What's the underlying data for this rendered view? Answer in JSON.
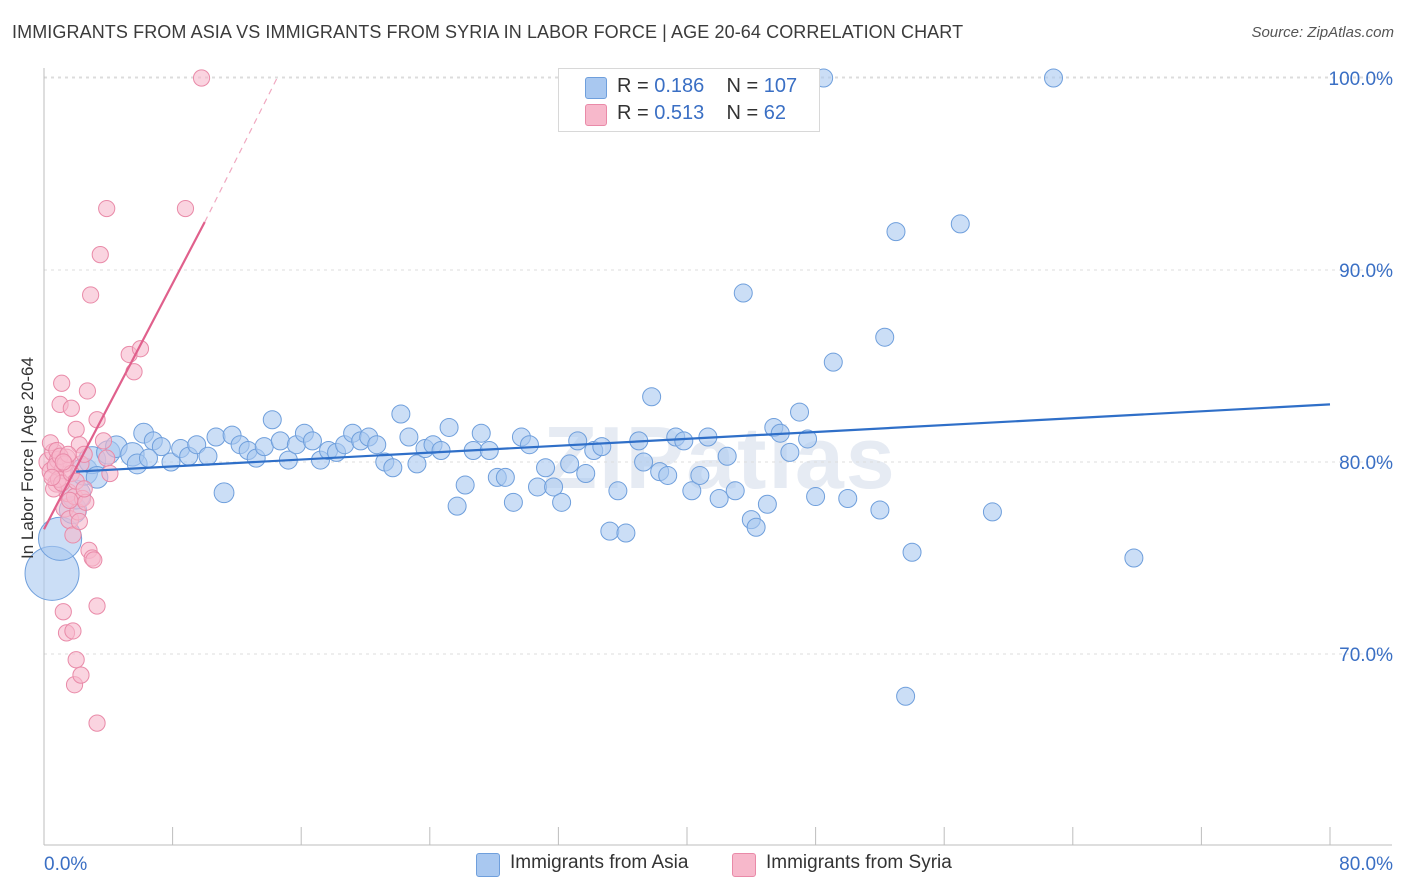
{
  "title": "IMMIGRANTS FROM ASIA VS IMMIGRANTS FROM SYRIA IN LABOR FORCE | AGE 20-64 CORRELATION CHART",
  "source": "Source: ZipAtlas.com",
  "watermark": "ZIPatlas",
  "legend": {
    "asia": {
      "r_label": "R =",
      "r_value": "0.186",
      "n_label": "N =",
      "n_value": "107"
    },
    "syria": {
      "r_label": "R =",
      "r_value": "0.513",
      "n_label": "N =",
      "n_value": "62"
    }
  },
  "colors": {
    "asia_fill": "#a9c8f0",
    "asia_stroke": "#6f9fdc",
    "asia_line": "#2f6fc8",
    "syria_fill": "#f7b8cb",
    "syria_stroke": "#e98aa8",
    "syria_line": "#e0608c",
    "axis_text": "#3a6fc4"
  },
  "chart_data": {
    "type": "scatter",
    "xlabel": "",
    "ylabel": "In Labor Force | Age 20-64",
    "xlim": [
      0,
      80
    ],
    "ylim": [
      60,
      100
    ],
    "x_ticks": [
      "0.0%",
      "80.0%"
    ],
    "y_ticks": [
      {
        "value": 70,
        "label": "70.0%"
      },
      {
        "value": 80,
        "label": "80.0%"
      },
      {
        "value": 90,
        "label": "90.0%"
      },
      {
        "value": 100,
        "label": "100.0%"
      }
    ],
    "grid": "horizontal dashed",
    "legend_position": "top-center",
    "series": [
      {
        "name": "Immigrants from Asia",
        "trend": {
          "x0": 2.0,
          "y0": 79.5,
          "x1": 80.0,
          "y1": 83.0
        },
        "points": [
          [
            0.5,
            74.2,
            3
          ],
          [
            1.0,
            76.0,
            2.4
          ],
          [
            1.8,
            77.5,
            1.5
          ],
          [
            2.0,
            78.3,
            1.6
          ],
          [
            2.5,
            79.5,
            1.5
          ],
          [
            3.0,
            80.1,
            1.5
          ],
          [
            4.0,
            80.5,
            1.3
          ],
          [
            4.5,
            80.8,
            1.2
          ],
          [
            5.5,
            80.4,
            1.3
          ],
          [
            5.8,
            79.9,
            1.1
          ],
          [
            6.2,
            81.5,
            1.1
          ],
          [
            6.8,
            81.1,
            1.0
          ],
          [
            7.3,
            80.8,
            1.0
          ],
          [
            7.9,
            80.0,
            1.0
          ],
          [
            8.5,
            80.7,
            1.0
          ],
          [
            9.0,
            80.3,
            1.0
          ],
          [
            9.5,
            80.9,
            1.0
          ],
          [
            10.2,
            80.3,
            1.0
          ],
          [
            10.7,
            81.3,
            1.0
          ],
          [
            11.2,
            78.4,
            1.1
          ],
          [
            11.7,
            81.4,
            1.0
          ],
          [
            12.2,
            80.9,
            1.0
          ],
          [
            12.7,
            80.6,
            1.0
          ],
          [
            13.2,
            80.2,
            1.0
          ],
          [
            13.7,
            80.8,
            1.0
          ],
          [
            14.2,
            82.2,
            1.0
          ],
          [
            14.7,
            81.1,
            1.0
          ],
          [
            15.2,
            80.1,
            1.0
          ],
          [
            15.7,
            80.9,
            1.0
          ],
          [
            16.2,
            81.5,
            1.0
          ],
          [
            16.7,
            81.1,
            1.0
          ],
          [
            17.2,
            80.1,
            1.0
          ],
          [
            17.7,
            80.6,
            1.0
          ],
          [
            18.2,
            80.5,
            1.0
          ],
          [
            18.7,
            80.9,
            1.0
          ],
          [
            19.2,
            81.5,
            1.0
          ],
          [
            19.7,
            81.1,
            1.0
          ],
          [
            20.2,
            81.3,
            1.0
          ],
          [
            20.7,
            80.9,
            1.0
          ],
          [
            21.2,
            80.0,
            1.0
          ],
          [
            21.7,
            79.7,
            1.0
          ],
          [
            22.2,
            82.5,
            1.0
          ],
          [
            22.7,
            81.3,
            1.0
          ],
          [
            23.2,
            79.9,
            1.0
          ],
          [
            23.7,
            80.7,
            1.0
          ],
          [
            24.2,
            80.9,
            1.0
          ],
          [
            24.7,
            80.6,
            1.0
          ],
          [
            25.2,
            81.8,
            1.0
          ],
          [
            25.7,
            77.7,
            1.0
          ],
          [
            26.2,
            78.8,
            1.0
          ],
          [
            26.7,
            80.6,
            1.0
          ],
          [
            27.2,
            81.5,
            1.0
          ],
          [
            27.7,
            80.6,
            1.0
          ],
          [
            28.2,
            79.2,
            1.0
          ],
          [
            28.7,
            79.2,
            1.0
          ],
          [
            29.2,
            77.9,
            1.0
          ],
          [
            29.7,
            81.3,
            1.0
          ],
          [
            30.2,
            80.9,
            1.0
          ],
          [
            30.7,
            78.7,
            1.0
          ],
          [
            31.2,
            79.7,
            1.0
          ],
          [
            31.7,
            78.7,
            1.0
          ],
          [
            32.2,
            77.9,
            1.0
          ],
          [
            32.7,
            79.9,
            1.0
          ],
          [
            33.2,
            81.1,
            1.0
          ],
          [
            33.7,
            79.4,
            1.0
          ],
          [
            34.2,
            80.6,
            1.0
          ],
          [
            34.7,
            80.8,
            1.0
          ],
          [
            35.2,
            76.4,
            1.0
          ],
          [
            35.7,
            78.5,
            1.0
          ],
          [
            36.2,
            76.3,
            1.0
          ],
          [
            37.0,
            81.1,
            1.0
          ],
          [
            37.3,
            80.0,
            1.0
          ],
          [
            37.8,
            83.4,
            1.0
          ],
          [
            38.3,
            79.5,
            1.0
          ],
          [
            38.8,
            79.3,
            1.0
          ],
          [
            39.3,
            81.3,
            1.0
          ],
          [
            39.8,
            81.1,
            1.0
          ],
          [
            40.3,
            78.5,
            1.0
          ],
          [
            40.8,
            79.3,
            1.0
          ],
          [
            41.3,
            81.3,
            1.0
          ],
          [
            42.0,
            78.1,
            1.0
          ],
          [
            42.5,
            80.3,
            1.0
          ],
          [
            43.0,
            78.5,
            1.0
          ],
          [
            43.5,
            88.8,
            1.0
          ],
          [
            44.0,
            77.0,
            1.0
          ],
          [
            44.3,
            76.6,
            1.0
          ],
          [
            45.0,
            77.8,
            1.0
          ],
          [
            45.4,
            81.8,
            1.0
          ],
          [
            45.8,
            81.5,
            1.0
          ],
          [
            46.4,
            80.5,
            1.0
          ],
          [
            47.0,
            82.6,
            1.0
          ],
          [
            47.5,
            81.2,
            1.0
          ],
          [
            48.0,
            78.2,
            1.0
          ],
          [
            48.5,
            100.0,
            1.0
          ],
          [
            49.1,
            85.2,
            1.0
          ],
          [
            50.0,
            78.1,
            1.0
          ],
          [
            52.0,
            77.5,
            1.0
          ],
          [
            52.3,
            86.5,
            1.0
          ],
          [
            53.0,
            92.0,
            1.0
          ],
          [
            53.6,
            67.8,
            1.0
          ],
          [
            54.0,
            75.3,
            1.0
          ],
          [
            57.0,
            92.4,
            1.0
          ],
          [
            59.0,
            77.4,
            1.0
          ],
          [
            62.8,
            100.0,
            1.0
          ],
          [
            67.8,
            75.0,
            1.0
          ],
          [
            3.3,
            79.2,
            1.2
          ],
          [
            6.5,
            80.2,
            1.0
          ]
        ]
      },
      {
        "name": "Immigrants from Syria",
        "trend": {
          "x0": 0.0,
          "y0": 76.5,
          "x1": 10.0,
          "y1": 92.5,
          "dash_to": {
            "x": 14.5,
            "y": 100
          }
        },
        "points": [
          [
            0.3,
            80.0,
            1.1
          ],
          [
            0.5,
            79.5,
            1.1
          ],
          [
            0.6,
            80.5,
            1.0
          ],
          [
            0.8,
            78.9,
            1.0
          ],
          [
            0.9,
            80.1,
            1.0
          ],
          [
            1.0,
            83.0,
            0.9
          ],
          [
            1.1,
            84.1,
            0.9
          ],
          [
            1.2,
            79.6,
            1.0
          ],
          [
            1.3,
            77.6,
            1.0
          ],
          [
            1.4,
            80.2,
            1.0
          ],
          [
            1.5,
            78.4,
            1.0
          ],
          [
            1.6,
            77.0,
            1.0
          ],
          [
            1.7,
            82.8,
            0.9
          ],
          [
            1.8,
            76.2,
            0.9
          ],
          [
            1.9,
            78.2,
            0.9
          ],
          [
            2.0,
            81.7,
            0.9
          ],
          [
            2.1,
            77.4,
            0.9
          ],
          [
            2.2,
            80.9,
            0.9
          ],
          [
            2.3,
            79.9,
            0.9
          ],
          [
            2.4,
            78.1,
            0.9
          ],
          [
            2.5,
            80.4,
            0.9
          ],
          [
            2.6,
            77.9,
            0.9
          ],
          [
            2.7,
            83.7,
            0.9
          ],
          [
            2.8,
            75.4,
            0.9
          ],
          [
            2.9,
            88.7,
            0.9
          ],
          [
            3.0,
            75.0,
            0.9
          ],
          [
            3.1,
            74.9,
            0.9
          ],
          [
            3.3,
            82.2,
            0.9
          ],
          [
            3.5,
            90.8,
            0.9
          ],
          [
            3.7,
            81.1,
            0.9
          ],
          [
            3.9,
            80.2,
            0.9
          ],
          [
            4.1,
            79.4,
            0.9
          ],
          [
            1.2,
            72.2,
            0.9
          ],
          [
            1.4,
            71.1,
            0.9
          ],
          [
            1.8,
            71.2,
            0.9
          ],
          [
            1.9,
            68.4,
            0.9
          ],
          [
            2.0,
            69.7,
            0.9
          ],
          [
            2.3,
            68.9,
            0.9
          ],
          [
            3.3,
            72.5,
            0.9
          ],
          [
            3.3,
            66.4,
            0.9
          ],
          [
            3.9,
            93.2,
            0.9
          ],
          [
            5.3,
            85.6,
            0.9
          ],
          [
            5.6,
            84.7,
            0.9
          ],
          [
            6.0,
            85.9,
            0.9
          ],
          [
            8.8,
            93.2,
            0.9
          ],
          [
            9.8,
            100.0,
            0.9
          ],
          [
            0.4,
            81.0,
            0.9
          ],
          [
            0.6,
            78.6,
            0.9
          ],
          [
            0.7,
            79.8,
            0.9
          ],
          [
            0.8,
            80.6,
            0.9
          ],
          [
            0.9,
            79.1,
            0.9
          ],
          [
            1.0,
            80.3,
            0.9
          ],
          [
            1.1,
            78.9,
            0.9
          ],
          [
            1.3,
            79.9,
            0.9
          ],
          [
            1.5,
            80.4,
            0.9
          ],
          [
            1.6,
            78.0,
            0.9
          ],
          [
            1.7,
            79.4,
            0.9
          ],
          [
            2.0,
            79.0,
            0.9
          ],
          [
            2.2,
            76.9,
            0.9
          ],
          [
            2.5,
            78.6,
            0.9
          ],
          [
            0.5,
            79.2,
            0.9
          ],
          [
            1.2,
            80.0,
            0.9
          ]
        ]
      }
    ]
  }
}
